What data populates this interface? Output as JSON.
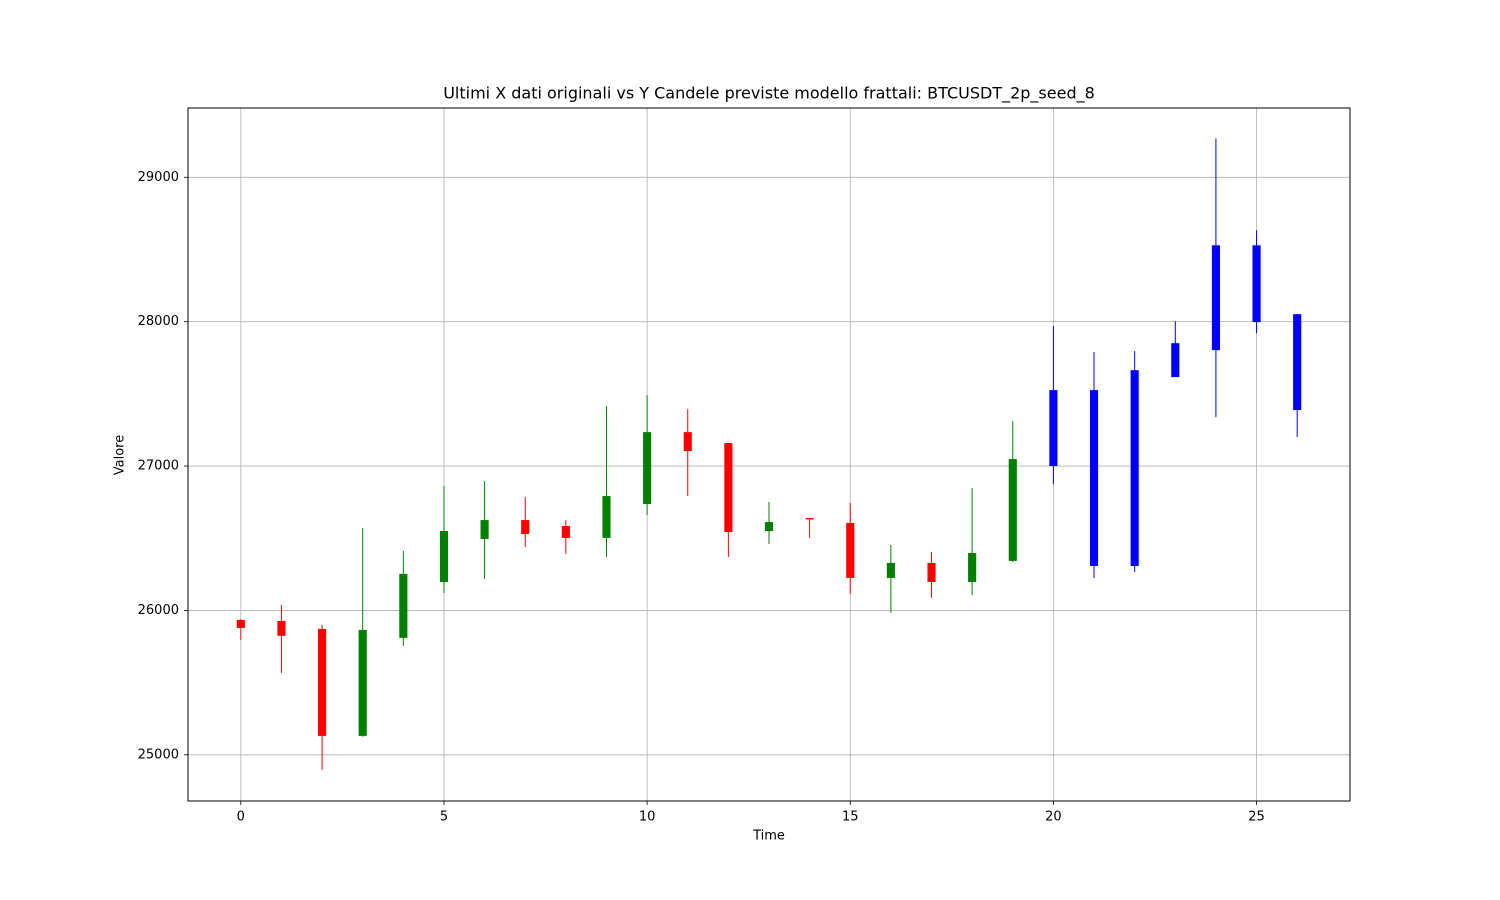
{
  "chart_data": {
    "type": "candlestick",
    "title": "Ultimi X dati originali vs Y Candele previste modello frattali: BTCUSDT_2p_seed_8",
    "x_label": "Time",
    "y_label": "Valore",
    "xlim": [
      -1.3,
      27.3
    ],
    "ylim": [
      24680,
      29480
    ],
    "xticks": [
      0,
      5,
      10,
      15,
      20,
      25
    ],
    "yticks": [
      25000,
      26000,
      27000,
      28000,
      29000
    ],
    "grid": true,
    "series": [
      {
        "up_color": "green",
        "down_color": "red",
        "x": [
          0,
          1,
          2,
          3,
          4,
          5,
          6,
          7,
          8,
          9,
          10,
          11,
          12,
          13,
          14,
          15,
          16,
          17,
          18,
          19
        ],
        "open": [
          25934,
          25927,
          25872,
          25131,
          25810,
          26197,
          26495,
          26626,
          26585,
          26502,
          26737,
          27235,
          27159,
          26550,
          26640,
          26606,
          26225,
          26329,
          26197,
          26343
        ],
        "high": [
          25940,
          26038,
          25900,
          26571,
          26412,
          26862,
          26896,
          26785,
          26626,
          27415,
          27491,
          27394,
          27159,
          26751,
          26640,
          26744,
          26453,
          26405,
          26848,
          27311
        ],
        "low": [
          25796,
          25567,
          24896,
          25125,
          25754,
          26121,
          26218,
          26439,
          26391,
          26370,
          26661,
          26792,
          26370,
          26460,
          26502,
          26114,
          25983,
          26087,
          26107,
          26336
        ],
        "close": [
          25879,
          25824,
          25131,
          25865,
          26253,
          26550,
          26626,
          26529,
          26502,
          26792,
          27235,
          27104,
          26543,
          26612,
          26630,
          26225,
          26329,
          26197,
          26398,
          27048
        ]
      },
      {
        "color": "blue",
        "x": [
          20,
          21,
          22,
          23,
          24,
          25,
          26
        ],
        "open": [
          27000,
          27526,
          27664,
          27616,
          27803,
          28529,
          28052
        ],
        "high": [
          27969,
          27789,
          27796,
          28003,
          29270,
          28633,
          28052
        ],
        "low": [
          26875,
          26225,
          26266,
          27616,
          27339,
          27920,
          27201
        ],
        "close": [
          27526,
          26308,
          26308,
          27851,
          28529,
          27997,
          27388
        ]
      }
    ]
  }
}
